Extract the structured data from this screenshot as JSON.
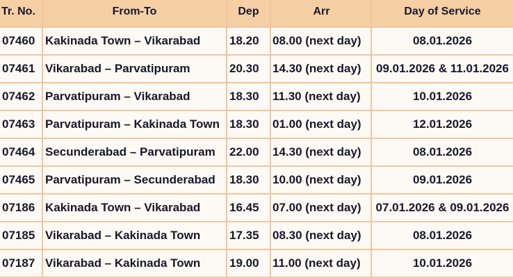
{
  "header": {
    "columns": [
      "Tr. No.",
      "From-To",
      "Dep",
      "Arr",
      "Day of Service"
    ]
  },
  "table": {
    "rows": [
      [
        "07460",
        "Kakinada Town – Vikarabad",
        "18.20",
        "08.00 (next day)",
        "08.01.2026"
      ],
      [
        "07461",
        "Vikarabad – Parvatipuram",
        "20.30",
        "14.30 (next day)",
        "09.01.2026 & 11.01.2026"
      ],
      [
        "07462",
        "Parvatipuram – Vikarabad",
        "18.30",
        "11.30 (next day)",
        "10.01.2026"
      ],
      [
        "07463",
        "Parvatipuram – Kakinada Town",
        "18.30",
        "01.00 (next day)",
        "12.01.2026"
      ],
      [
        "07464",
        "Secunderabad – Parvatipuram",
        "22.00",
        "14.30 (next day)",
        "08.01.2026"
      ],
      [
        "07465",
        "Parvatipuram – Secunderabad",
        "18.30",
        "10.00 (next day)",
        "09.01.2026"
      ],
      [
        "07186",
        "Kakinada Town – Vikarabad",
        "16.45",
        "07.00 (next day)",
        "07.01.2026 & 09.01.2026"
      ],
      [
        "07185",
        "Vikarabad – Kakinada Town",
        "17.35",
        "08.30 (next day)",
        "08.01.2026"
      ],
      [
        "07187",
        "Vikarabad – Kakinada Town",
        "19.00",
        "11.00 (next day)",
        "10.01.2026"
      ]
    ]
  }
}
